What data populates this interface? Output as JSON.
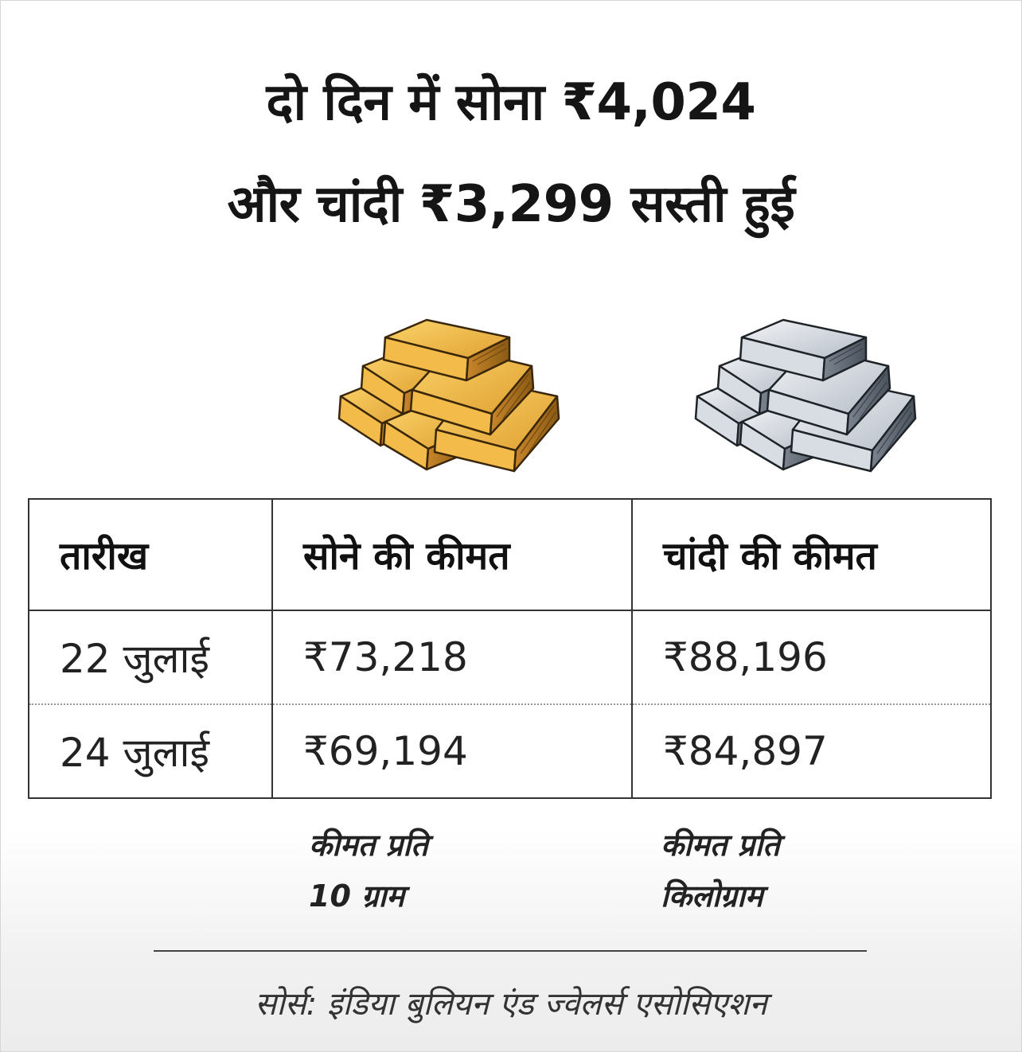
{
  "headline": {
    "line1": "दो दिन में सोना ₹4,024",
    "line2": "और चांदी ₹3,299 सस्ती हुई"
  },
  "table": {
    "headers": [
      "तारीख",
      "सोने की कीमत",
      "चांदी की कीमत"
    ],
    "rows": [
      [
        "22 जुलाई",
        "₹73,218",
        "₹88,196"
      ],
      [
        "24 जुलाई",
        "₹69,194",
        "₹84,897"
      ]
    ]
  },
  "notes": {
    "gold": [
      "कीमत प्रति",
      "10 ग्राम"
    ],
    "silver": [
      "कीमत प्रति",
      "किलोग्राम"
    ]
  },
  "source": "सोर्स: इंडिया बुलियन एंड ज्वेलर्स एसोसिएशन",
  "colors": {
    "gold": "#e9a62c",
    "silver": "#c6ccd4"
  },
  "icons": {
    "gold": "gold-bars-icon",
    "silver": "silver-bars-icon"
  }
}
